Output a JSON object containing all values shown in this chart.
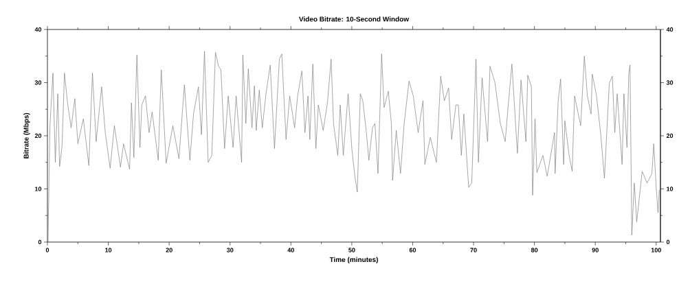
{
  "chart_data": {
    "type": "line",
    "title": "Video Bitrate: 10-Second Window",
    "xlabel": "Time (minutes)",
    "ylabel": "Bitrate (Mbps)",
    "xlim": [
      0,
      100.7
    ],
    "xticks": [
      0,
      10,
      20,
      30,
      40,
      50,
      60,
      70,
      80,
      90,
      100
    ],
    "ylim": [
      0,
      40
    ],
    "yticks": [
      0,
      10,
      20,
      30,
      40
    ],
    "y2lim": [
      0,
      40
    ],
    "y2ticks": [
      0,
      10,
      20,
      30,
      40
    ],
    "grid": false,
    "legend": false,
    "marker": "none",
    "line_style": "solid",
    "series": [
      {
        "color": "#808080",
        "x": [
          0.1,
          0.4,
          0.9,
          1.3,
          1.7,
          2.0,
          2.4,
          2.8,
          3.3,
          3.9,
          4.5,
          5.0,
          5.9,
          6.8,
          7.4,
          8.0,
          8.9,
          9.5,
          10.3,
          11.0,
          12.0,
          12.5,
          13.5,
          13.8,
          14.2,
          14.7,
          15.2,
          15.5,
          16.1,
          16.7,
          17.2,
          18.2,
          18.7,
          19.5,
          20.6,
          21.6,
          22.5,
          23.4,
          24.0,
          24.8,
          25.3,
          25.8,
          26.4,
          27.0,
          27.6,
          28.1,
          28.5,
          29.1,
          29.7,
          30.5,
          31.0,
          31.9,
          32.1,
          32.6,
          33.0,
          33.6,
          34.0,
          34.3,
          34.8,
          35.3,
          35.9,
          36.6,
          37.3,
          38.1,
          38.5,
          39.2,
          39.8,
          40.6,
          41.1,
          41.8,
          42.3,
          42.8,
          43.1,
          43.6,
          44.1,
          44.5,
          45.3,
          46.0,
          46.6,
          47.0,
          47.7,
          48.1,
          48.6,
          49.4,
          50.0,
          50.5,
          50.9,
          51.4,
          51.8,
          52.4,
          52.8,
          53.4,
          53.8,
          54.3,
          54.9,
          55.3,
          56.0,
          56.5,
          56.7,
          57.3,
          58.0,
          58.6,
          59.4,
          60.1,
          60.9,
          61.7,
          62.0,
          62.9,
          63.9,
          64.6,
          65.2,
          65.9,
          66.4,
          67.1,
          67.5,
          68.0,
          68.4,
          69.2,
          69.7,
          70.4,
          70.8,
          71.4,
          72.3,
          72.7,
          73.5,
          74.4,
          75.2,
          75.7,
          76.3,
          77.2,
          77.8,
          78.6,
          78.9,
          79.5,
          79.7,
          80.1,
          80.4,
          81.4,
          82.1,
          83.3,
          83.4,
          83.9,
          84.3,
          84.8,
          85.0,
          85.7,
          86.2,
          86.6,
          87.6,
          88.2,
          88.7,
          89.3,
          89.5,
          90.2,
          90.9,
          91.5,
          92.3,
          92.8,
          93.2,
          93.6,
          94.4,
          94.7,
          95.2,
          95.5,
          95.7,
          96.0,
          96.4,
          96.8,
          97.7,
          98.5,
          99.3,
          99.6,
          100.0,
          100.3,
          100.5
        ],
        "values": [
          0.1,
          21.5,
          31.8,
          15,
          27.9,
          14.2,
          18,
          31.8,
          26.2,
          21.5,
          27,
          18.5,
          23.2,
          14.4,
          31.8,
          18.9,
          29.2,
          20.6,
          13.9,
          21.9,
          14.1,
          18.5,
          13.7,
          26.2,
          15.9,
          35.2,
          17.8,
          25.8,
          27.5,
          20.6,
          24.5,
          15.4,
          32.4,
          14.8,
          21.9,
          15.7,
          29.6,
          15.4,
          24.1,
          29.2,
          20.2,
          35.9,
          15,
          16.3,
          35.7,
          33.1,
          32.4,
          17.6,
          27.5,
          17.8,
          27.5,
          15,
          35.2,
          22.3,
          32.6,
          21.5,
          29.4,
          21,
          28.6,
          21.5,
          27.9,
          33.3,
          17.6,
          34.4,
          35.4,
          19.3,
          27.5,
          21.5,
          27.5,
          32.2,
          20.6,
          27.5,
          19.3,
          33.5,
          17.6,
          25.8,
          21,
          26.2,
          34.4,
          22.3,
          16.3,
          25.8,
          16.3,
          27.9,
          17.6,
          12.4,
          9.4,
          27.9,
          26.6,
          20.6,
          15.4,
          21.5,
          22.3,
          12.9,
          35.4,
          25.3,
          28.4,
          22.3,
          11.6,
          21,
          12.9,
          22.3,
          30.3,
          27.5,
          20.6,
          26.6,
          14.6,
          19.7,
          15,
          31.2,
          26.6,
          29,
          19.3,
          25.8,
          25.8,
          16.3,
          24.1,
          10.3,
          11.1,
          34.4,
          15,
          30.9,
          18.9,
          33.1,
          30.1,
          22.3,
          18.9,
          25.8,
          33.5,
          16.7,
          30.5,
          18.9,
          31.4,
          29.2,
          8.8,
          23.2,
          13.1,
          16.3,
          12.4,
          20.6,
          12.9,
          26.6,
          30.7,
          14.6,
          22.8,
          16.3,
          13.3,
          27.5,
          21.9,
          35,
          27.5,
          24.1,
          31.6,
          27.5,
          20.2,
          12,
          29.9,
          31.2,
          20.6,
          27.9,
          14.6,
          27.9,
          17.8,
          31.8,
          33.3,
          1.3,
          11.1,
          3.8,
          13.3,
          11.1,
          12.9,
          18.5,
          10.3,
          5.5,
          9.8
        ]
      }
    ]
  }
}
